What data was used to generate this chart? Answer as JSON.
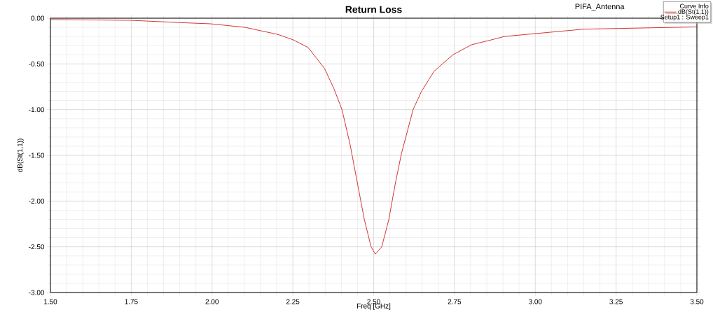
{
  "chart_data": {
    "type": "line",
    "title": "Return Loss",
    "xlabel": "Freq [GHz]",
    "ylabel": "dB(St(1,1))",
    "legend_title": "Curve Info",
    "annotations": [
      "PIFA_Antenna",
      "Setup1 : Sweep1"
    ],
    "x": [
      1.5,
      1.75,
      1.9,
      1.994,
      2.102,
      2.204,
      2.25,
      2.297,
      2.348,
      2.377,
      2.402,
      2.427,
      2.449,
      2.471,
      2.492,
      2.505,
      2.525,
      2.547,
      2.568,
      2.586,
      2.601,
      2.622,
      2.648,
      2.687,
      2.745,
      2.803,
      2.861,
      2.904,
      3.149,
      3.5
    ],
    "series": [
      {
        "name": "dB(St(1,1))",
        "color": "#cc0000",
        "values": [
          -0.015,
          -0.023,
          -0.048,
          -0.061,
          -0.1,
          -0.178,
          -0.235,
          -0.32,
          -0.55,
          -0.77,
          -1.0,
          -1.38,
          -1.79,
          -2.2,
          -2.5,
          -2.58,
          -2.5,
          -2.2,
          -1.79,
          -1.48,
          -1.28,
          -1.0,
          -0.8,
          -0.58,
          -0.4,
          -0.29,
          -0.24,
          -0.2,
          -0.12,
          -0.095
        ]
      }
    ],
    "xlim": [
      1.5,
      3.5
    ],
    "ylim": [
      -3.0,
      0.0
    ],
    "xticks": [
      {
        "value": 1.5,
        "label": "1.50"
      },
      {
        "value": 1.75,
        "label": "1.75"
      },
      {
        "value": 2.0,
        "label": "2.00"
      },
      {
        "value": 2.25,
        "label": "2.25"
      },
      {
        "value": 2.5,
        "label": "2.50"
      },
      {
        "value": 2.75,
        "label": "2.75"
      },
      {
        "value": 3.0,
        "label": "3.00"
      },
      {
        "value": 3.25,
        "label": "3.25"
      },
      {
        "value": 3.5,
        "label": "3.50"
      }
    ],
    "yticks": [
      {
        "value": -3.0,
        "label": "-3.00"
      },
      {
        "value": -2.5,
        "label": "-2.50"
      },
      {
        "value": -2.0,
        "label": "-2.00"
      },
      {
        "value": -1.5,
        "label": "-1.50"
      },
      {
        "value": -1.0,
        "label": "-1.00"
      },
      {
        "value": -0.5,
        "label": "-0.50"
      },
      {
        "value": 0.0,
        "label": "0.00"
      }
    ],
    "grid": true,
    "legend": "top right",
    "marker": "none",
    "line_style": "solid"
  }
}
